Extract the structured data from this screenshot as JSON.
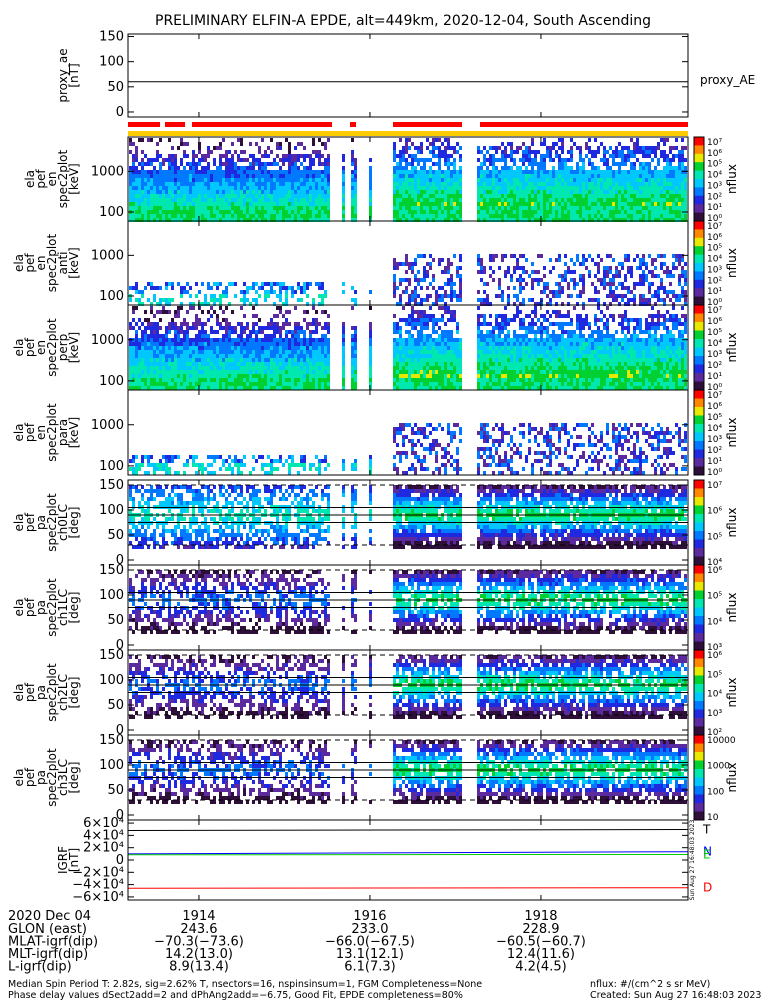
{
  "title": "PRELIMINARY ELFIN-A EPDE, alt=449km, 2020-12-04, South Ascending",
  "chart_data": [
    {
      "type": "line",
      "id": "proxy_ae",
      "ylabel": [
        "proxy_ae",
        "[nT]"
      ],
      "ylim": [
        -10,
        155
      ],
      "yticks": [
        "0",
        "50",
        "100",
        "150"
      ],
      "yticks_values": [
        0,
        50,
        100,
        150
      ],
      "series": [
        {
          "name": "proxy_AE",
          "values": [
            60,
            60
          ]
        }
      ],
      "legend_position": "right"
    },
    {
      "type": "heatmap",
      "id": "energy-omni",
      "ylabel": [
        "ela",
        "pef",
        "en",
        "spec2plot",
        "[keV]"
      ],
      "y_scale": "log",
      "ylim": [
        60,
        7000
      ],
      "yticks": [
        "100",
        "1000"
      ],
      "colorbar": {
        "label": "nflux",
        "ticks": [
          "10⁷",
          "10⁶",
          "10⁵",
          "10⁴",
          "10³",
          "10²",
          "10¹",
          "10⁰"
        ]
      }
    },
    {
      "type": "heatmap",
      "id": "energy-anti",
      "ylabel": [
        "ela",
        "pef",
        "en",
        "spec2plot",
        "anti",
        "[keV]"
      ],
      "y_scale": "log",
      "ylim": [
        60,
        7000
      ],
      "yticks": [
        "100",
        "1000"
      ],
      "colorbar": {
        "label": "nflux",
        "ticks": [
          "10⁷",
          "10⁶",
          "10⁵",
          "10⁴",
          "10³",
          "10²",
          "10¹",
          "10⁰"
        ]
      }
    },
    {
      "type": "heatmap",
      "id": "energy-perp",
      "ylabel": [
        "ela",
        "pef",
        "en",
        "spec2plot",
        "perp",
        "[keV]"
      ],
      "y_scale": "log",
      "ylim": [
        60,
        7000
      ],
      "yticks": [
        "100",
        "1000"
      ],
      "colorbar": {
        "label": "nflux",
        "ticks": [
          "10⁷",
          "10⁶",
          "10⁵",
          "10⁴",
          "10³",
          "10²",
          "10¹",
          "10⁰"
        ]
      }
    },
    {
      "type": "heatmap",
      "id": "energy-para",
      "ylabel": [
        "ela",
        "pef",
        "en",
        "spec2plot",
        "para",
        "[keV]"
      ],
      "y_scale": "log",
      "ylim": [
        60,
        7000
      ],
      "yticks": [
        "100",
        "1000"
      ],
      "colorbar": {
        "label": "nflux",
        "ticks": [
          "10⁷",
          "10⁶",
          "10⁵",
          "10⁴",
          "10³",
          "10²",
          "10¹",
          "10⁰"
        ]
      }
    },
    {
      "type": "heatmap",
      "id": "pa-ch0",
      "ylabel": [
        "ela",
        "pef",
        "pa",
        "spec2plot",
        "ch0LC",
        "[deg]"
      ],
      "ylim": [
        -10,
        160
      ],
      "yticks": [
        "0",
        "50",
        "100",
        "150"
      ],
      "yticks_values": [
        0,
        50,
        100,
        150
      ],
      "colorbar": {
        "label": "nflux",
        "ticks": [
          "10⁷",
          "10⁶",
          "10⁵",
          "10⁴"
        ]
      }
    },
    {
      "type": "heatmap",
      "id": "pa-ch1",
      "ylabel": [
        "ela",
        "pef",
        "pa",
        "spec2plot",
        "ch1LC",
        "[deg]"
      ],
      "ylim": [
        -10,
        160
      ],
      "yticks": [
        "0",
        "50",
        "100",
        "150"
      ],
      "yticks_values": [
        0,
        50,
        100,
        150
      ],
      "colorbar": {
        "label": "nflux",
        "ticks": [
          "10⁶",
          "10⁵",
          "10⁴",
          "10³"
        ]
      }
    },
    {
      "type": "heatmap",
      "id": "pa-ch2",
      "ylabel": [
        "ela",
        "pef",
        "pa",
        "spec2plot",
        "ch2LC",
        "[deg]"
      ],
      "ylim": [
        -10,
        160
      ],
      "yticks": [
        "0",
        "50",
        "100",
        "150"
      ],
      "yticks_values": [
        0,
        50,
        100,
        150
      ],
      "colorbar": {
        "label": "nflux",
        "ticks": [
          "10⁶",
          "10⁵",
          "10⁴",
          "10³",
          "10²"
        ]
      }
    },
    {
      "type": "heatmap",
      "id": "pa-ch3",
      "ylabel": [
        "ela",
        "pef",
        "pa",
        "spec2plot",
        "ch3LC",
        "[deg]"
      ],
      "ylim": [
        -10,
        160
      ],
      "yticks": [
        "0",
        "50",
        "100",
        "150"
      ],
      "yticks_values": [
        0,
        50,
        100,
        150
      ],
      "colorbar": {
        "label": "nflux",
        "ticks": [
          "10000",
          "1000",
          "100",
          "10"
        ]
      }
    },
    {
      "type": "line",
      "id": "igrf",
      "ylabel": [
        "IGRF",
        "[nT]"
      ],
      "ylim": [
        -65000,
        65000
      ],
      "yticks": [
        "6×10⁴",
        "4×10⁴",
        "2×10⁴",
        "0",
        "−2×10⁴",
        "−4×10⁴",
        "−6×10⁴"
      ],
      "yticks_values": [
        60000,
        40000,
        20000,
        0,
        -20000,
        -40000,
        -60000
      ],
      "series": [
        {
          "name": "T",
          "values": [
            48000,
            49500
          ],
          "color": "#000000"
        },
        {
          "name": "N",
          "values": [
            10000,
            13500
          ],
          "color": "#0000ff"
        },
        {
          "name": "E",
          "values": [
            8500,
            9000
          ],
          "color": "#00cc00"
        },
        {
          "name": "D",
          "values": [
            -46000,
            -45000
          ],
          "color": "#ff0000"
        }
      ],
      "stamp": "Sun Aug 27 16:48:03 2023"
    }
  ],
  "xaxis": {
    "date": "2020 Dec 04",
    "ticks": [
      "1914",
      "1916",
      "1918"
    ],
    "ticks_values": [
      1914,
      1916,
      1918
    ],
    "xlim": [
      1913.17,
      1919.72
    ],
    "rows": [
      {
        "label": "GLON (east)",
        "values": [
          "243.6",
          "233.0",
          "228.9"
        ]
      },
      {
        "label": "MLAT-igrf(dip)",
        "values": [
          "−70.3(−73.6)",
          "−66.0(−67.5)",
          "−60.5(−60.7)"
        ]
      },
      {
        "label": "MLT-igrf(dip)",
        "values": [
          "14.2(13.0)",
          "13.1(12.1)",
          "12.4(11.6)"
        ]
      },
      {
        "label": "L-igrf(dip)",
        "values": [
          "8.9(13.4)",
          "6.1(7.3)",
          "4.2(4.5)"
        ]
      }
    ]
  },
  "footer": {
    "line1": "Median Spin Period T: 2.82s, sig=2.62% T, nsectors=16, nspinsinsum=1, FGM Completeness=None",
    "line2": "Phase delay values dSect2add=2 and dPhAng2add=−6.75, Good Fit, EPDE completeness=80%",
    "units": "nflux: #/(cm^2 s sr MeV)",
    "created": "Created: Sun Aug 27 16:48:03 2023"
  },
  "colors": {
    "red_bar": "#ff0000",
    "orange_bar": "#ffcc00",
    "colormap": [
      "#ffffff",
      "#2e0f3a",
      "#5a2a9e",
      "#1f2ae0",
      "#0078ff",
      "#00c8ff",
      "#00e8b0",
      "#00d030",
      "#e8e800",
      "#ff8800",
      "#ff0000"
    ]
  }
}
